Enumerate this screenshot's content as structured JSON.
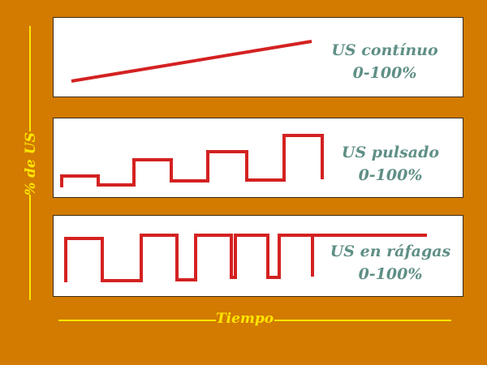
{
  "panels": [
    {
      "title": "US contínuo",
      "range": "0-100%"
    },
    {
      "title": "US pulsado",
      "range": "0-100%"
    },
    {
      "title": "US en ráfagas",
      "range": "0-100%"
    }
  ],
  "axes": {
    "y_label": "% de US",
    "x_label": "Tiempo"
  },
  "colors": {
    "background": "#d27b00",
    "signal": "#d42121",
    "text": "#5f8f86",
    "axis": "#ffe600"
  }
}
